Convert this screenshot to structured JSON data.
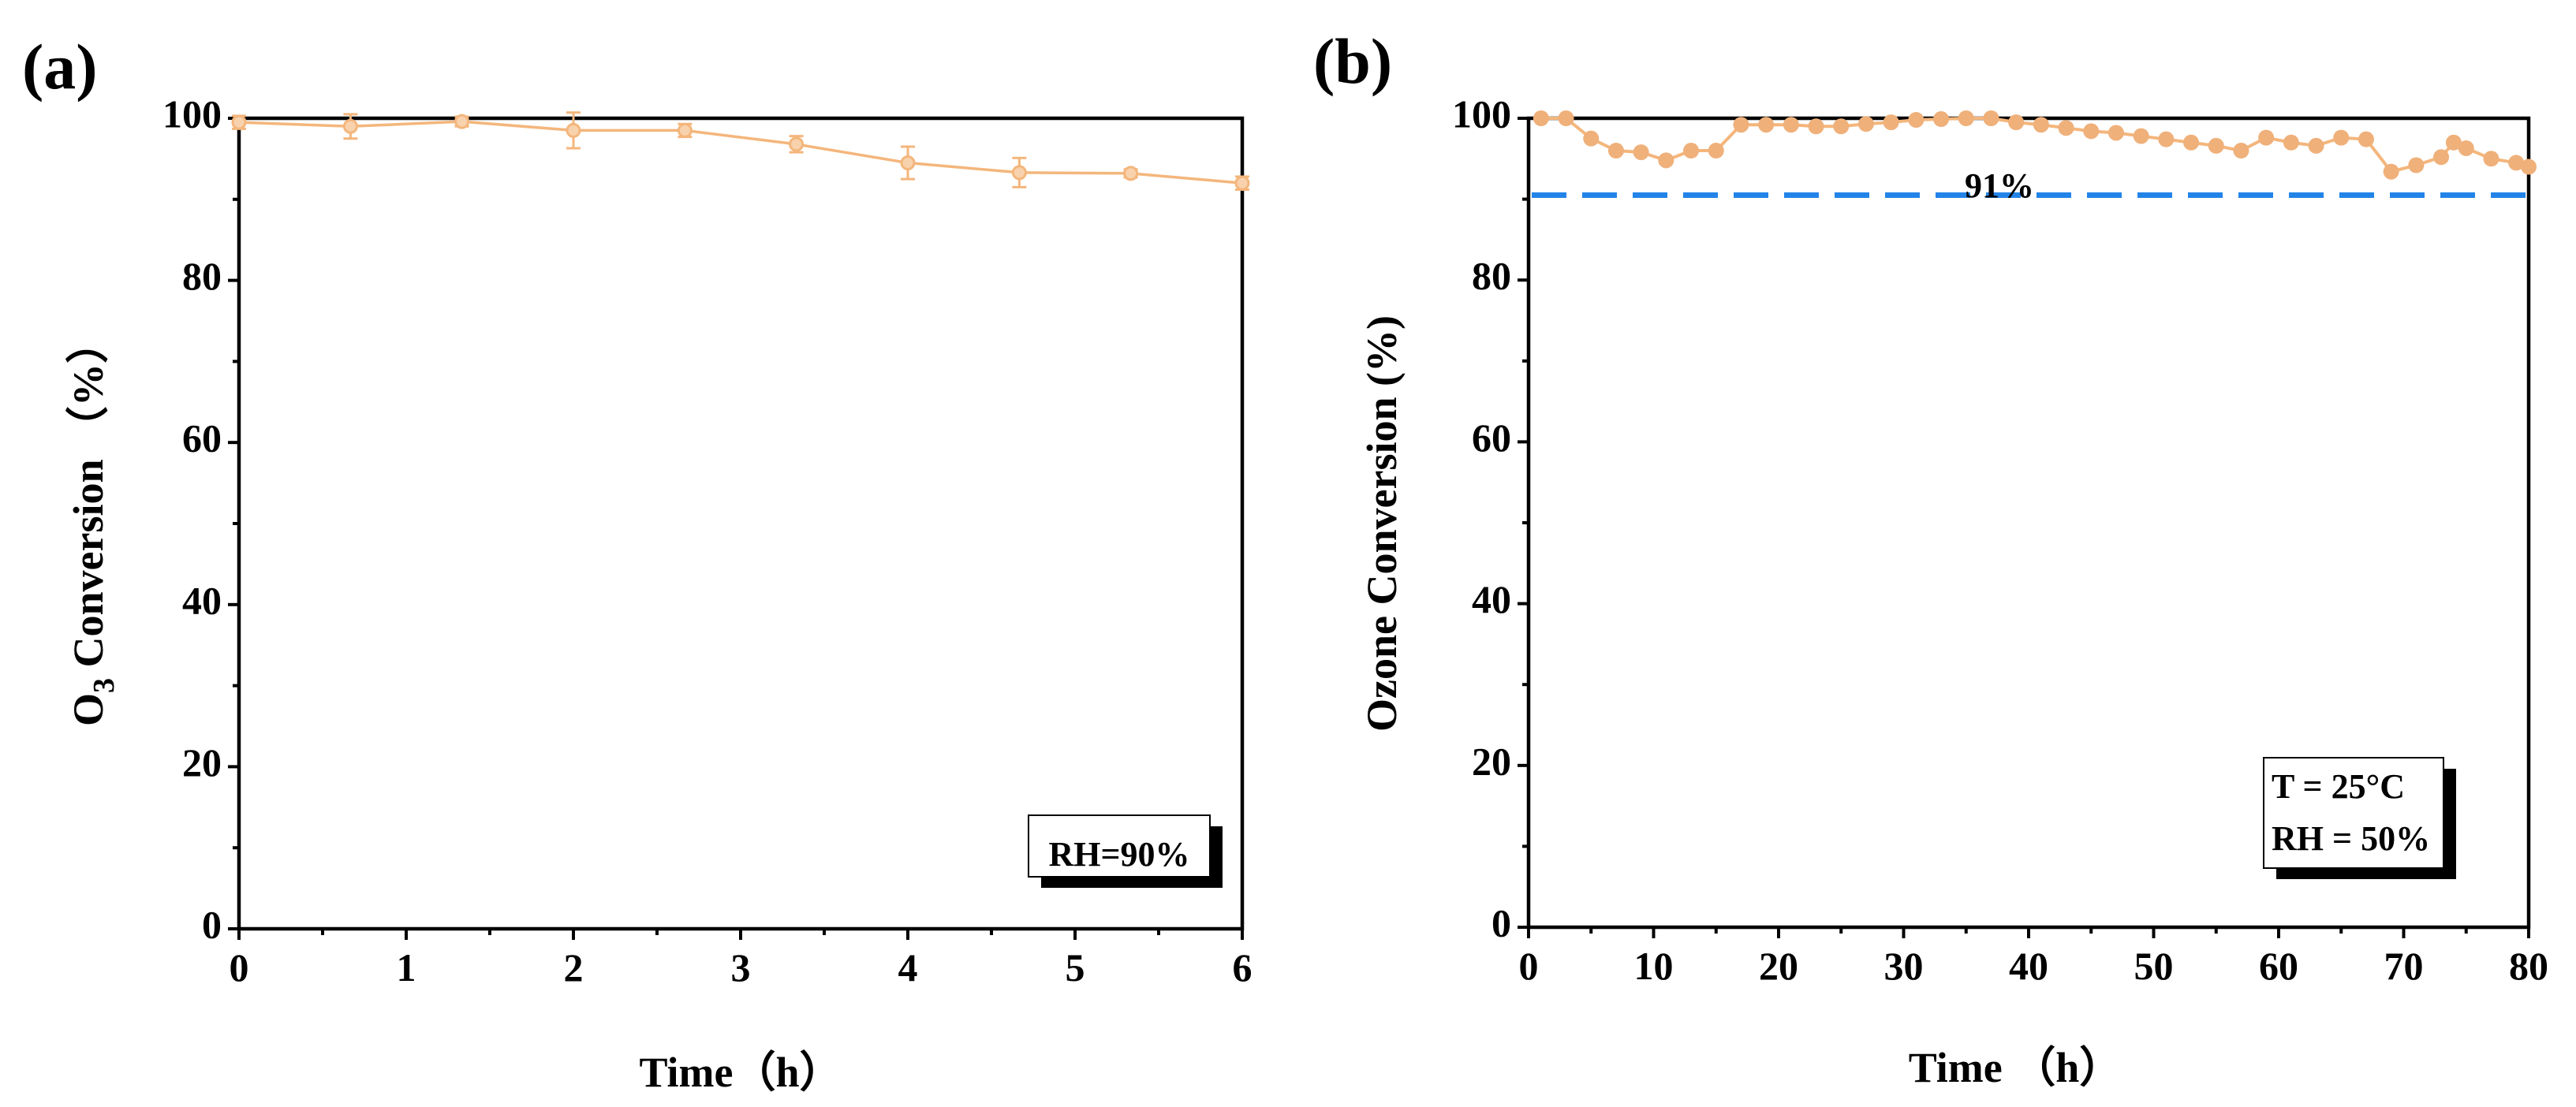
{
  "colors": {
    "series": "#f4b67c",
    "series_marker": "#efb07a",
    "reference": "#2384e8",
    "axis": "#000000",
    "background": "#ffffff"
  },
  "chart_data": [
    {
      "panel": "(a)",
      "type": "line",
      "title": "",
      "xlabel": "Time（h）",
      "ylabel": "O₃ Conversion （%）",
      "ylabel_parts": {
        "pre": "O",
        "sub": "3",
        "post": " Conversion （%）"
      },
      "xlim": [
        0,
        6
      ],
      "ylim": [
        0,
        100
      ],
      "xticks": [
        0,
        1,
        2,
        3,
        4,
        5,
        6
      ],
      "yticks": [
        0,
        20,
        40,
        60,
        80,
        100
      ],
      "x_minor_step": 0.5,
      "y_minor_step": 10,
      "grid": false,
      "annotation": {
        "lines": [
          "RH=90%"
        ],
        "placement": "bottom-right"
      },
      "series": [
        {
          "name": "O3 conversion",
          "marker": "open-circle",
          "x": [
            0,
            0.667,
            1.333,
            2,
            2.667,
            3.333,
            4,
            4.667,
            5.333,
            6
          ],
          "y": [
            99.5,
            99.0,
            99.6,
            98.5,
            98.5,
            96.8,
            94.5,
            93.3,
            93.2,
            92.0
          ],
          "yerr": [
            0.8,
            1.5,
            0.6,
            2.2,
            0.8,
            1.0,
            2.0,
            1.8,
            0.5,
            0.8
          ]
        }
      ]
    },
    {
      "panel": "(b)",
      "type": "line",
      "title": "",
      "xlabel": "Time （h）",
      "ylabel": "Ozone Conversion (%)",
      "xlim": [
        0,
        80
      ],
      "ylim": [
        0,
        100
      ],
      "xticks": [
        0,
        10,
        20,
        30,
        40,
        50,
        60,
        70,
        80
      ],
      "yticks": [
        0,
        20,
        40,
        60,
        80,
        100
      ],
      "x_minor_step": 5,
      "y_minor_step": 10,
      "grid": false,
      "annotation": {
        "lines": [
          "T = 25°C",
          "RH = 50%"
        ],
        "placement": "bottom-right"
      },
      "reference_line": {
        "y": 90.5,
        "style": "dashed",
        "label": "91%"
      },
      "series": [
        {
          "name": "Ozone conversion",
          "marker": "filled-circle",
          "x": [
            1,
            3,
            5,
            7,
            9,
            11,
            13,
            15,
            17,
            19,
            21,
            23,
            25,
            27,
            29,
            31,
            33,
            35,
            37,
            39,
            41,
            43,
            45,
            47,
            49,
            51,
            53,
            55,
            57,
            59,
            61,
            63,
            65,
            67,
            69,
            71,
            73,
            74,
            75,
            77,
            79,
            80
          ],
          "y": [
            100.0,
            100.0,
            97.5,
            96.0,
            95.8,
            94.8,
            96.0,
            96.0,
            99.2,
            99.2,
            99.2,
            99.0,
            99.0,
            99.3,
            99.5,
            99.8,
            99.9,
            100.0,
            100.0,
            99.5,
            99.2,
            98.8,
            98.4,
            98.2,
            97.8,
            97.4,
            97.0,
            96.6,
            96.0,
            97.6,
            97.0,
            96.6,
            97.6,
            97.4,
            93.4,
            94.2,
            95.2,
            97.0,
            96.3,
            95.0,
            94.5,
            94.0
          ]
        }
      ]
    }
  ]
}
